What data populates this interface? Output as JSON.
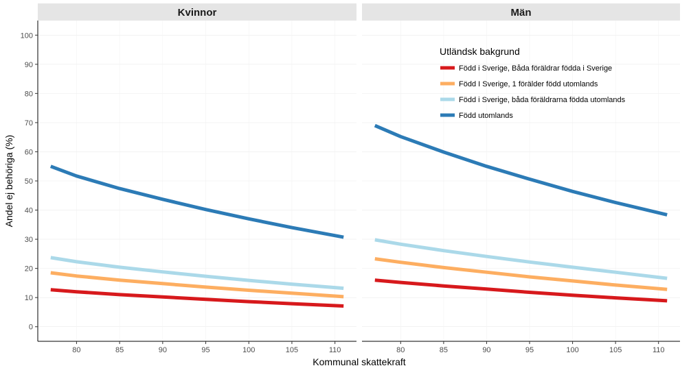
{
  "chart_data": {
    "type": "line",
    "xlabel": "Kommunal skattekraft",
    "ylabel": "Andel ej behöriga (%)",
    "xlim": [
      75.5,
      112.5
    ],
    "ylim": [
      -5,
      105
    ],
    "x_ticks": [
      80,
      85,
      90,
      95,
      100,
      105,
      110
    ],
    "y_ticks": [
      0,
      10,
      20,
      30,
      40,
      50,
      60,
      70,
      80,
      90,
      100
    ],
    "grid": true,
    "legend_title": "Utländsk bakgrund",
    "legend_position": "top-right (inside Män panel)",
    "series_meta": [
      {
        "name": "Född i Sverige, Båda föräldrar födda i Sverige",
        "color": "#d7191c"
      },
      {
        "name": "Född I Sverige, 1 förälder född utomlands",
        "color": "#fdae61"
      },
      {
        "name": "Född i Sverige, båda föräldrarna födda utomlands",
        "color": "#abd9e9"
      },
      {
        "name": "Född utomlands",
        "color": "#2c7bb6"
      }
    ],
    "panels": [
      {
        "title": "Kvinnor",
        "x": [
          77,
          80,
          85,
          90,
          95,
          100,
          105,
          111
        ],
        "series": [
          {
            "name": "Född i Sverige, Båda föräldrar födda i Sverige",
            "values": [
              12.7,
              12.0,
              11.0,
              10.2,
              9.4,
              8.6,
              7.9,
              7.1
            ]
          },
          {
            "name": "Född I Sverige, 1 förälder född utomlands",
            "values": [
              18.5,
              17.4,
              16.0,
              14.8,
              13.6,
              12.5,
              11.5,
              10.3
            ]
          },
          {
            "name": "Född i Sverige, båda föräldrarna födda utomlands",
            "values": [
              23.7,
              22.3,
              20.4,
              18.8,
              17.3,
              15.9,
              14.6,
              13.2
            ]
          },
          {
            "name": "Född utomlands",
            "values": [
              55.0,
              51.7,
              47.4,
              43.7,
              40.2,
              37.0,
              34.0,
              30.7
            ]
          }
        ]
      },
      {
        "title": "Män",
        "x": [
          77,
          80,
          85,
          90,
          95,
          100,
          105,
          111
        ],
        "series": [
          {
            "name": "Född i Sverige, Båda föräldrar födda i Sverige",
            "values": [
              16.0,
              15.2,
              14.0,
              12.9,
              11.8,
              10.8,
              9.9,
              8.9
            ]
          },
          {
            "name": "Född I Sverige, 1 förälder född utomlands",
            "values": [
              23.3,
              22.1,
              20.3,
              18.7,
              17.1,
              15.7,
              14.3,
              12.8
            ]
          },
          {
            "name": "Född i Sverige, båda föräldrarna födda utomlands",
            "values": [
              29.8,
              28.3,
              26.1,
              24.1,
              22.2,
              20.4,
              18.7,
              16.6
            ]
          },
          {
            "name": "Född utomlands",
            "values": [
              69.0,
              65.2,
              59.9,
              55.0,
              50.6,
              46.4,
              42.6,
              38.4
            ]
          }
        ]
      }
    ]
  }
}
